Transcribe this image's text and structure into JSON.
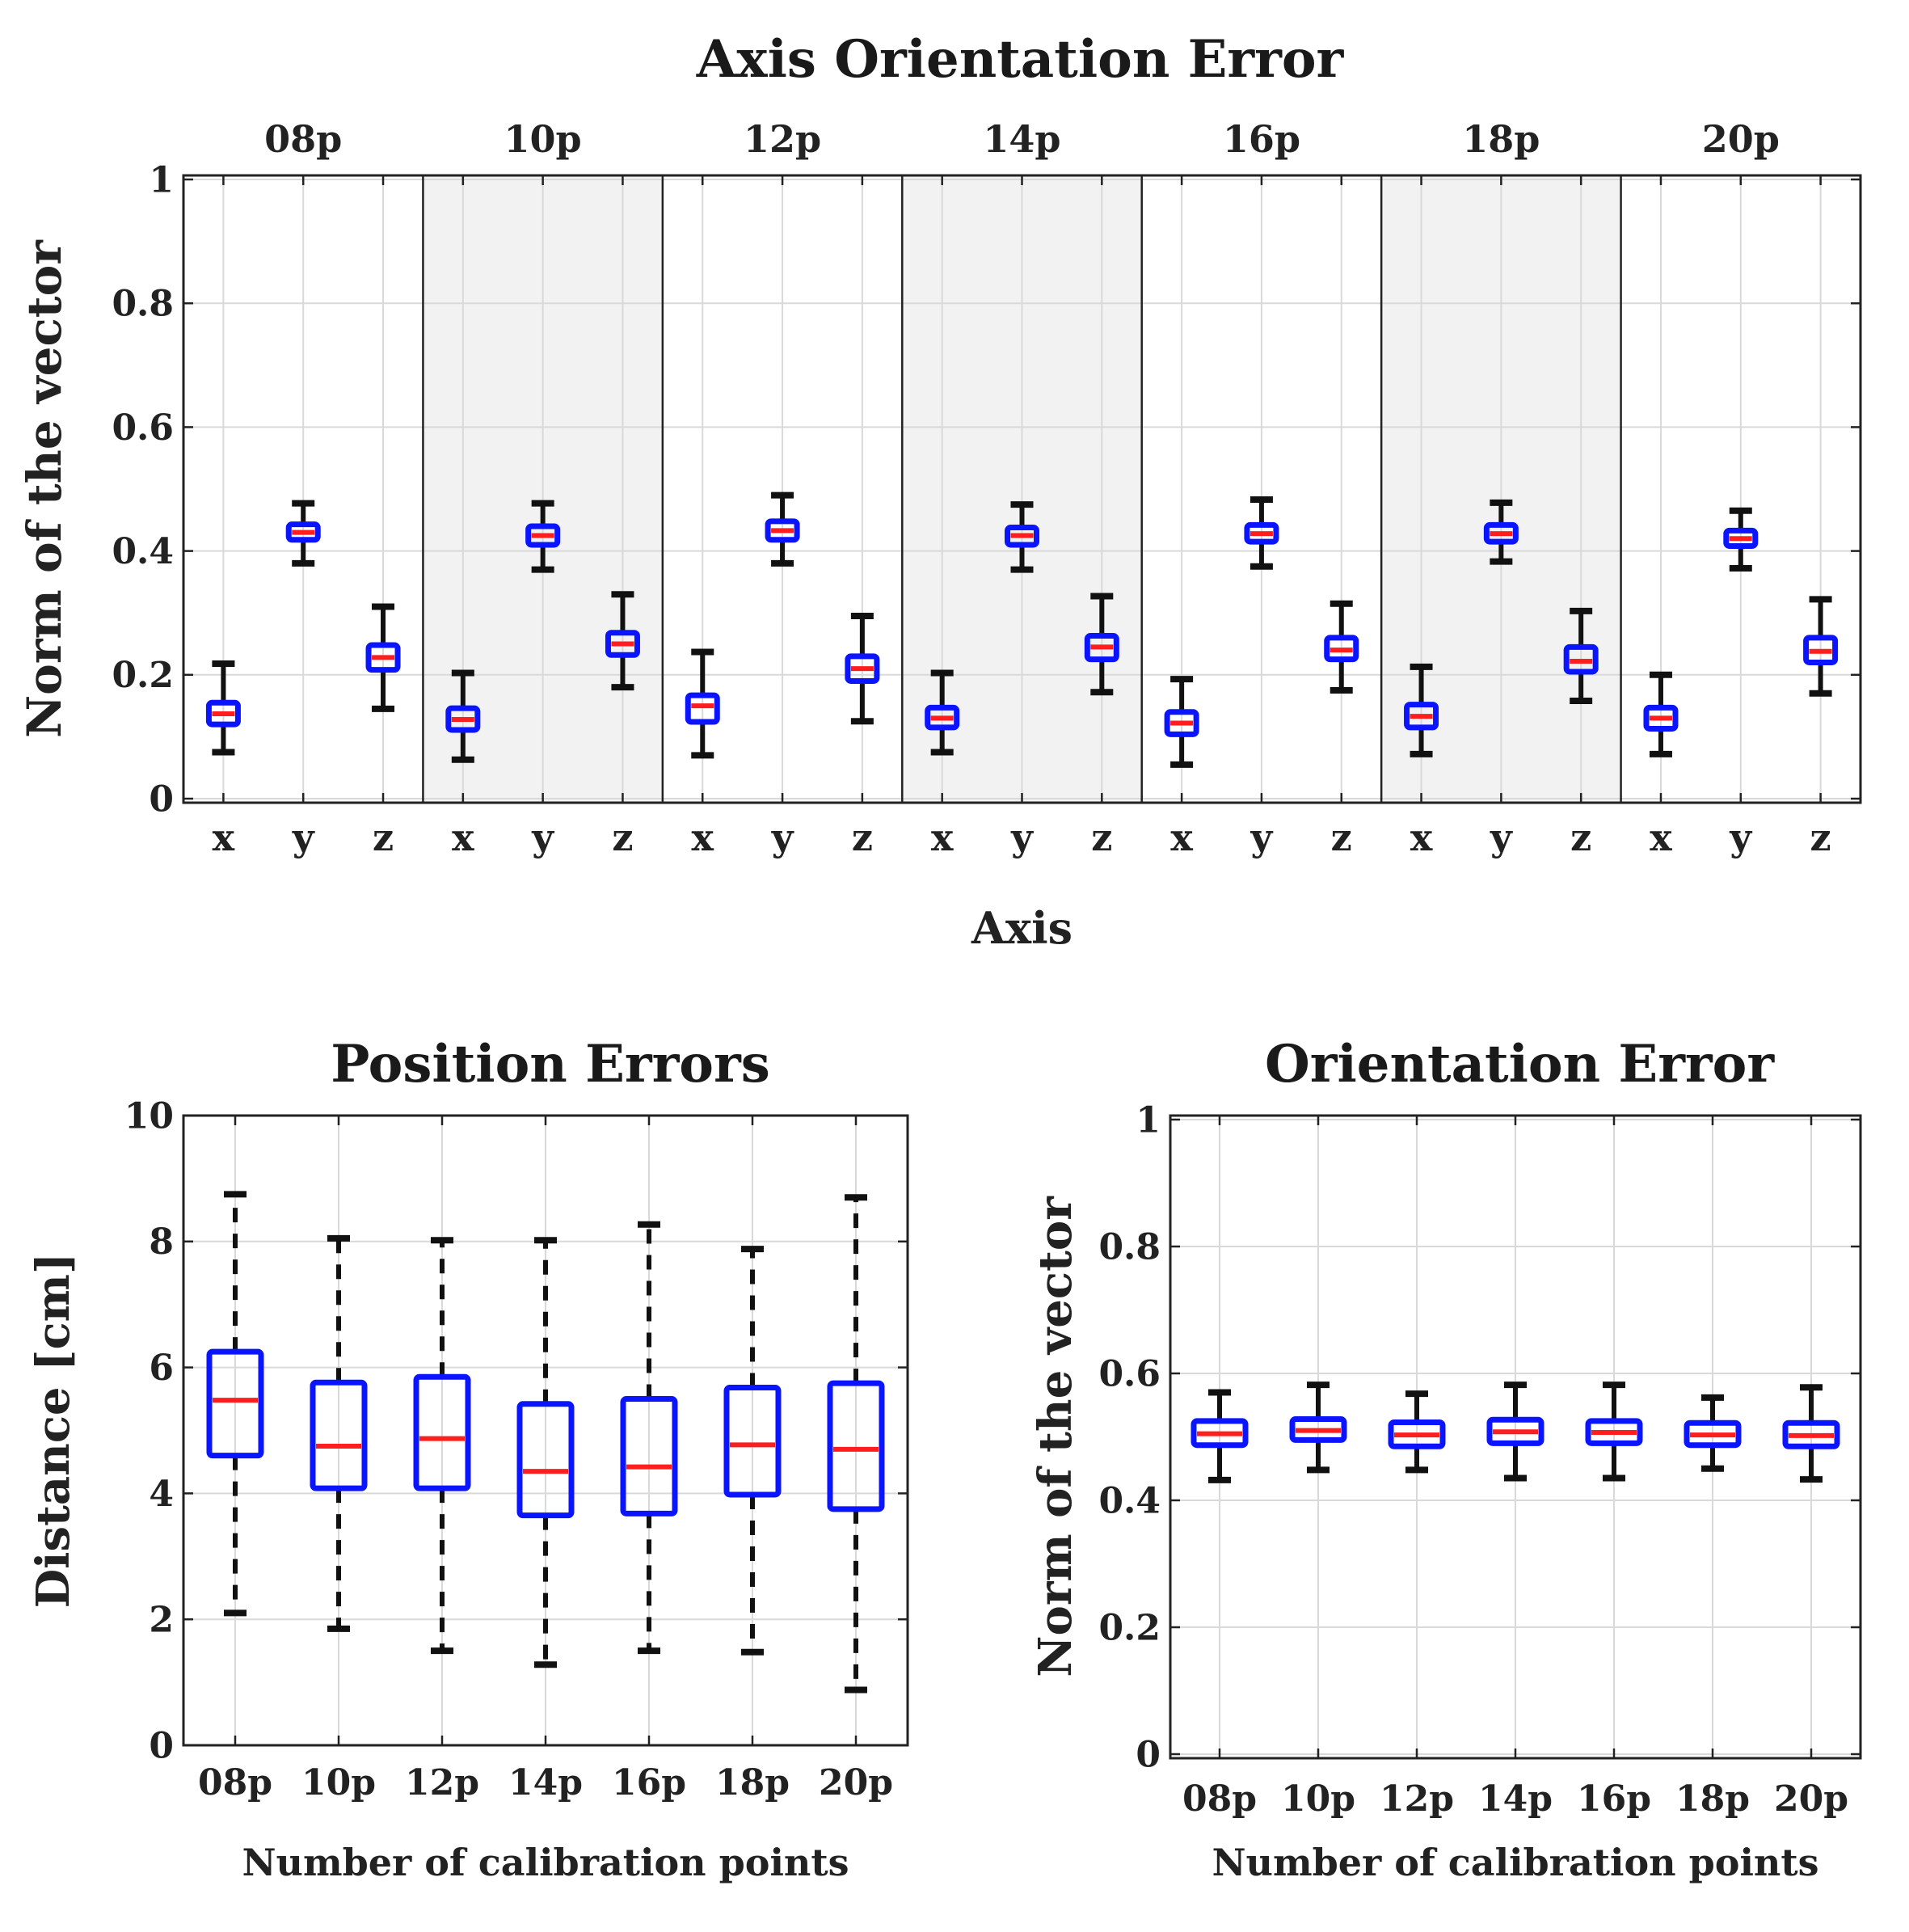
{
  "colors": {
    "box": "#0a14ff",
    "median": "#ff1e1e",
    "whisker": "#111111",
    "grid": "#d9d9d9",
    "shade": "#f2f2f2"
  },
  "chart_data": [
    {
      "id": "axis",
      "type": "boxplot",
      "title": "Axis Orientation Error",
      "xlabel": "Axis",
      "ylabel": "Norm of the vector",
      "ylim": [
        0,
        1
      ],
      "yticks": [
        0,
        0.2,
        0.4,
        0.6,
        0.8,
        1
      ],
      "ytick_labels": [
        "0",
        "0.2",
        "0.4",
        "0.6",
        "0.8",
        "1"
      ],
      "groups": [
        "08p",
        "10p",
        "12p",
        "14p",
        "16p",
        "18p",
        "20p"
      ],
      "shaded_groups": [
        "10p",
        "14p",
        "18p"
      ],
      "axes": [
        "x",
        "y",
        "z"
      ],
      "boxes": [
        {
          "group": "08p",
          "axis": "x",
          "lo": 0.075,
          "q1": 0.12,
          "med": 0.137,
          "q3": 0.155,
          "hi": 0.218
        },
        {
          "group": "08p",
          "axis": "y",
          "lo": 0.38,
          "q1": 0.418,
          "med": 0.43,
          "q3": 0.443,
          "hi": 0.477
        },
        {
          "group": "08p",
          "axis": "z",
          "lo": 0.145,
          "q1": 0.208,
          "med": 0.228,
          "q3": 0.248,
          "hi": 0.31
        },
        {
          "group": "10p",
          "axis": "x",
          "lo": 0.063,
          "q1": 0.111,
          "med": 0.128,
          "q3": 0.146,
          "hi": 0.203
        },
        {
          "group": "10p",
          "axis": "y",
          "lo": 0.37,
          "q1": 0.41,
          "med": 0.425,
          "q3": 0.44,
          "hi": 0.477
        },
        {
          "group": "10p",
          "axis": "z",
          "lo": 0.18,
          "q1": 0.232,
          "med": 0.25,
          "q3": 0.268,
          "hi": 0.33
        },
        {
          "group": "12p",
          "axis": "x",
          "lo": 0.07,
          "q1": 0.124,
          "med": 0.15,
          "q3": 0.167,
          "hi": 0.237
        },
        {
          "group": "12p",
          "axis": "y",
          "lo": 0.38,
          "q1": 0.418,
          "med": 0.433,
          "q3": 0.448,
          "hi": 0.49
        },
        {
          "group": "12p",
          "axis": "z",
          "lo": 0.125,
          "q1": 0.19,
          "med": 0.21,
          "q3": 0.23,
          "hi": 0.295
        },
        {
          "group": "14p",
          "axis": "x",
          "lo": 0.075,
          "q1": 0.115,
          "med": 0.13,
          "q3": 0.147,
          "hi": 0.203
        },
        {
          "group": "14p",
          "axis": "y",
          "lo": 0.37,
          "q1": 0.41,
          "med": 0.425,
          "q3": 0.438,
          "hi": 0.475
        },
        {
          "group": "14p",
          "axis": "z",
          "lo": 0.172,
          "q1": 0.225,
          "med": 0.245,
          "q3": 0.263,
          "hi": 0.327
        },
        {
          "group": "16p",
          "axis": "x",
          "lo": 0.055,
          "q1": 0.104,
          "med": 0.122,
          "q3": 0.14,
          "hi": 0.193
        },
        {
          "group": "16p",
          "axis": "y",
          "lo": 0.375,
          "q1": 0.415,
          "med": 0.428,
          "q3": 0.442,
          "hi": 0.483
        },
        {
          "group": "16p",
          "axis": "z",
          "lo": 0.175,
          "q1": 0.225,
          "med": 0.24,
          "q3": 0.26,
          "hi": 0.315
        },
        {
          "group": "18p",
          "axis": "x",
          "lo": 0.072,
          "q1": 0.115,
          "med": 0.133,
          "q3": 0.152,
          "hi": 0.213
        },
        {
          "group": "18p",
          "axis": "y",
          "lo": 0.383,
          "q1": 0.415,
          "med": 0.428,
          "q3": 0.442,
          "hi": 0.478
        },
        {
          "group": "18p",
          "axis": "z",
          "lo": 0.158,
          "q1": 0.205,
          "med": 0.222,
          "q3": 0.245,
          "hi": 0.303
        },
        {
          "group": "20p",
          "axis": "x",
          "lo": 0.072,
          "q1": 0.113,
          "med": 0.13,
          "q3": 0.147,
          "hi": 0.2
        },
        {
          "group": "20p",
          "axis": "y",
          "lo": 0.372,
          "q1": 0.408,
          "med": 0.42,
          "q3": 0.433,
          "hi": 0.465
        },
        {
          "group": "20p",
          "axis": "z",
          "lo": 0.17,
          "q1": 0.22,
          "med": 0.238,
          "q3": 0.26,
          "hi": 0.322
        }
      ]
    },
    {
      "id": "pos",
      "type": "boxplot",
      "title": "Position Errors",
      "xlabel": "Number of calibration points",
      "ylabel": "Distance [cm]",
      "ylim": [
        0,
        10
      ],
      "yticks": [
        0,
        2,
        4,
        6,
        8,
        10
      ],
      "ytick_labels": [
        "0",
        "2",
        "4",
        "6",
        "8",
        "10"
      ],
      "categories": [
        "08p",
        "10p",
        "12p",
        "14p",
        "16p",
        "18p",
        "20p"
      ],
      "boxes": [
        {
          "lo": 2.1,
          "q1": 4.6,
          "med": 5.48,
          "q3": 6.25,
          "hi": 8.75
        },
        {
          "lo": 1.85,
          "q1": 4.08,
          "med": 4.75,
          "q3": 5.76,
          "hi": 8.05
        },
        {
          "lo": 1.5,
          "q1": 4.08,
          "med": 4.87,
          "q3": 5.85,
          "hi": 8.02
        },
        {
          "lo": 1.28,
          "q1": 3.65,
          "med": 4.35,
          "q3": 5.42,
          "hi": 8.02
        },
        {
          "lo": 1.5,
          "q1": 3.68,
          "med": 4.42,
          "q3": 5.5,
          "hi": 8.27
        },
        {
          "lo": 1.48,
          "q1": 3.98,
          "med": 4.77,
          "q3": 5.68,
          "hi": 7.88
        },
        {
          "lo": 0.88,
          "q1": 3.75,
          "med": 4.7,
          "q3": 5.75,
          "hi": 8.7
        }
      ]
    },
    {
      "id": "ori",
      "type": "boxplot",
      "title": "Orientation Error",
      "xlabel": "Number of calibration points",
      "ylabel": "Norm of the vector",
      "ylim": [
        0,
        1
      ],
      "yticks": [
        0,
        0.2,
        0.4,
        0.6,
        0.8,
        1
      ],
      "ytick_labels": [
        "0",
        "0.2",
        "0.4",
        "0.6",
        "0.8",
        "1"
      ],
      "categories": [
        "08p",
        "10p",
        "12p",
        "14p",
        "16p",
        "18p",
        "20p"
      ],
      "boxes": [
        {
          "lo": 0.432,
          "q1": 0.487,
          "med": 0.505,
          "q3": 0.525,
          "hi": 0.57
        },
        {
          "lo": 0.448,
          "q1": 0.495,
          "med": 0.51,
          "q3": 0.528,
          "hi": 0.582
        },
        {
          "lo": 0.448,
          "q1": 0.485,
          "med": 0.503,
          "q3": 0.523,
          "hi": 0.568
        },
        {
          "lo": 0.435,
          "q1": 0.49,
          "med": 0.508,
          "q3": 0.527,
          "hi": 0.582
        },
        {
          "lo": 0.435,
          "q1": 0.49,
          "med": 0.507,
          "q3": 0.525,
          "hi": 0.582
        },
        {
          "lo": 0.45,
          "q1": 0.487,
          "med": 0.503,
          "q3": 0.522,
          "hi": 0.562
        },
        {
          "lo": 0.433,
          "q1": 0.485,
          "med": 0.502,
          "q3": 0.522,
          "hi": 0.578
        }
      ]
    }
  ]
}
